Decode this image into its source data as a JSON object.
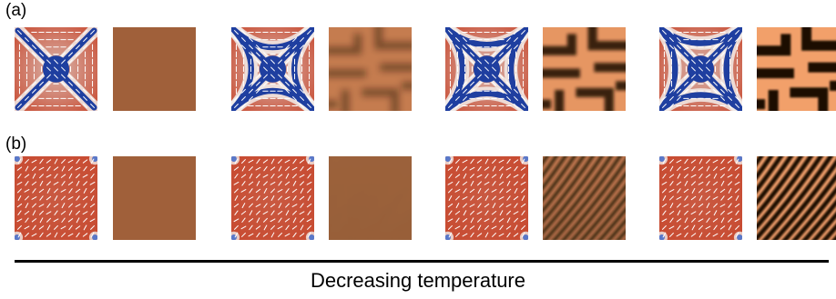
{
  "figure": {
    "row_labels": [
      "(a)",
      "(b)"
    ],
    "caption": "Decreasing temperature"
  },
  "colors": {
    "field_red": "#c84a30",
    "field_white": "#f2ece9",
    "field_blue": "#1f3fa0",
    "pattern_dark": "#1a0f06",
    "pattern_light": "#f2a06a",
    "uniform_brown": "#a0603a"
  },
  "rows": [
    {
      "label_key": "(a)",
      "director_style": "x-defect",
      "pattern_style": "labyrinth-coarse",
      "stages": [
        "uniform",
        "weak",
        "medium",
        "strong"
      ]
    },
    {
      "label_key": "(b)",
      "director_style": "corner-defect",
      "pattern_style": "diagonal-stripes",
      "stages": [
        "uniform",
        "weak",
        "medium",
        "strong"
      ]
    }
  ]
}
